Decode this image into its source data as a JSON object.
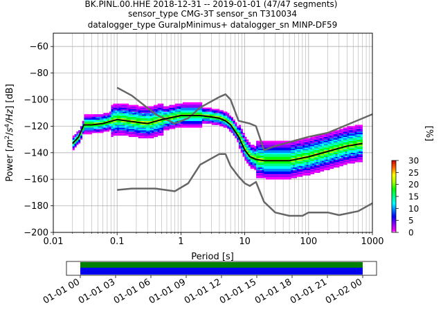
{
  "chart_data": [
    {
      "type": "heatmap",
      "title_lines": [
        "BK.PINL.00.HHE   2018-12-31 -- 2019-01-01  (47/47 segments)",
        "sensor_type CMG-3T sensor_sn T310034",
        "datalogger_type GuralpMinimus+ datalogger_sn MINP-DF59"
      ],
      "xlabel": "Period [s]",
      "ylabel_parts": [
        "Power [",
        "m",
        "2",
        "/",
        "s",
        "4",
        "/Hz",
        "] [dB]"
      ],
      "xscale": "log",
      "xlim": [
        0.01,
        1000
      ],
      "ylim": [
        -200,
        -50
      ],
      "xticks": [
        0.01,
        0.1,
        1,
        10,
        100,
        1000
      ],
      "xtick_labels": [
        "0.01",
        "0.1",
        "1",
        "10",
        "100",
        "1000"
      ],
      "yticks": [
        -60,
        -80,
        -100,
        -120,
        -140,
        -160,
        -180,
        -200
      ],
      "ytick_labels": [
        "−60",
        "−80",
        "−100",
        "−120",
        "−140",
        "−160",
        "−180",
        "−200"
      ],
      "grid": true,
      "colorbar": {
        "label": "[%]",
        "range": [
          0,
          30
        ],
        "ticks": [
          0,
          5,
          10,
          15,
          20,
          25,
          30
        ],
        "tick_labels": [
          "0",
          "5",
          "10",
          "15",
          "20",
          "25",
          "30"
        ]
      },
      "series": [
        {
          "role": "noise-model-high",
          "color": "#666666",
          "x": [
            0.1,
            0.17,
            0.4,
            0.8,
            1.3,
            2,
            4,
            5,
            6,
            8,
            12,
            15,
            20,
            30,
            60,
            100,
            200,
            400,
            1000
          ],
          "y": [
            -91,
            -97,
            -111,
            -118,
            -114,
            -106,
            -98,
            -96,
            -100,
            -116,
            -118,
            -120,
            -138,
            -135,
            -131,
            -128,
            -125,
            -119,
            -111
          ]
        },
        {
          "role": "noise-model-low",
          "color": "#666666",
          "x": [
            0.1,
            0.17,
            0.4,
            0.8,
            1.3,
            2,
            4,
            5,
            6,
            8,
            10,
            12,
            15,
            20,
            30,
            50,
            80,
            100,
            200,
            300,
            600,
            1000
          ],
          "y": [
            -168,
            -167,
            -167,
            -169,
            -163,
            -149,
            -141,
            -141,
            -150,
            -158,
            -163,
            -165,
            -162,
            -177,
            -185,
            -187.5,
            -187.5,
            -185,
            -185,
            -187,
            -184,
            -178
          ]
        },
        {
          "role": "mean-psd",
          "color": "#000000",
          "x": [
            0.02,
            0.025,
            0.03,
            0.04,
            0.06,
            0.1,
            0.2,
            0.3,
            0.5,
            0.8,
            1,
            1.5,
            2,
            3,
            4,
            5,
            6,
            8,
            10,
            12,
            15,
            20,
            30,
            50,
            100,
            200,
            400,
            700
          ],
          "y": [
            -133,
            -128,
            -119,
            -119,
            -118,
            -115,
            -117,
            -118,
            -115,
            -113,
            -112,
            -112,
            -112,
            -113,
            -114,
            -116,
            -119,
            -128,
            -138,
            -143,
            -145,
            -146,
            -146,
            -146,
            -143,
            -139,
            -135,
            -133
          ]
        }
      ]
    },
    {
      "type": "timeline",
      "tick_labels": [
        "01-01 00",
        "01-01 03",
        "01-01 06",
        "01-01 09",
        "01-01 12",
        "01-01 15",
        "01-01 18",
        "01-01 21",
        "01-02 00"
      ],
      "coverage_color": "#0000ee",
      "data_color": "#008000"
    }
  ]
}
